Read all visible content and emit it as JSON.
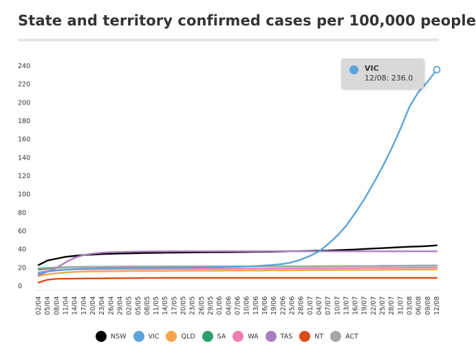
{
  "title": "State and territory confirmed cases per 100,000 people",
  "tooltip": {
    "series": "VIC",
    "text": "12/08: 236.0",
    "color": "#5ba3d9"
  },
  "chart_data": {
    "type": "line",
    "title": "State and territory confirmed cases per 100,000 people",
    "xlabel": "",
    "ylabel": "",
    "ylim": [
      0,
      240
    ],
    "yticks": [
      0,
      20,
      40,
      60,
      80,
      100,
      120,
      140,
      160,
      180,
      200,
      220,
      240
    ],
    "grid": false,
    "legend": "bottom",
    "x": [
      "02/04",
      "05/04",
      "08/04",
      "11/04",
      "14/04",
      "17/04",
      "20/04",
      "23/04",
      "26/04",
      "29/04",
      "02/05",
      "05/05",
      "08/05",
      "11/05",
      "14/05",
      "17/05",
      "20/05",
      "23/05",
      "26/05",
      "29/05",
      "01/06",
      "04/06",
      "07/06",
      "10/06",
      "13/06",
      "16/06",
      "19/06",
      "22/06",
      "25/06",
      "28/06",
      "01/07",
      "04/07",
      "07/07",
      "10/07",
      "13/07",
      "16/07",
      "19/07",
      "22/07",
      "25/07",
      "28/07",
      "31/07",
      "03/08",
      "06/08",
      "09/08",
      "12/08"
    ],
    "series": [
      {
        "name": "NSW",
        "color": "#000000",
        "values": [
          23,
          28,
          30,
          32,
          33,
          34,
          34.5,
          35,
          35.3,
          35.6,
          35.8,
          36,
          36.2,
          36.4,
          36.5,
          36.6,
          36.7,
          36.8,
          36.9,
          37,
          37,
          37.1,
          37.2,
          37.3,
          37.4,
          37.5,
          37.6,
          37.8,
          38,
          38.2,
          38.4,
          38.6,
          38.8,
          39.2,
          39.6,
          40,
          40.5,
          41,
          41.5,
          42,
          42.5,
          43,
          43.3,
          43.7,
          44.5
        ]
      },
      {
        "name": "VIC",
        "color": "#5ba3d9",
        "values": [
          14,
          16,
          17,
          18,
          18.5,
          19,
          19.2,
          19.4,
          19.5,
          19.6,
          19.7,
          19.8,
          19.9,
          20,
          20,
          20.1,
          20.2,
          20.3,
          20.4,
          20.6,
          20.8,
          21,
          21.2,
          21.5,
          22,
          22.5,
          23.2,
          24.2,
          26,
          29,
          33,
          38,
          46,
          55,
          66,
          80,
          95,
          112,
          130,
          150,
          172,
          196,
          212,
          223,
          236
        ]
      },
      {
        "name": "QLD",
        "color": "#f5a54a",
        "values": [
          11,
          13,
          14,
          15,
          15.5,
          15.8,
          16,
          16.1,
          16.2,
          16.3,
          16.4,
          16.5,
          16.5,
          16.6,
          16.6,
          16.7,
          16.7,
          16.8,
          16.8,
          16.9,
          16.9,
          17,
          17,
          17,
          17.1,
          17.1,
          17.2,
          17.2,
          17.3,
          17.3,
          17.4,
          17.4,
          17.5,
          17.5,
          17.6,
          17.6,
          17.7,
          17.7,
          17.8,
          17.8,
          17.9,
          17.9,
          18,
          18,
          18.1
        ]
      },
      {
        "name": "SA",
        "color": "#2c9e6f",
        "values": [
          18,
          19,
          20,
          20.5,
          20.8,
          21,
          21.1,
          21.2,
          21.3,
          21.3,
          21.4,
          21.4,
          21.4,
          21.4,
          21.5,
          21.5,
          21.5,
          21.5,
          21.5,
          21.5,
          21.5,
          21.5,
          21.6,
          21.6,
          21.6,
          21.6,
          21.6,
          21.7,
          21.7,
          21.7,
          21.7,
          21.8,
          21.8,
          21.8,
          21.9,
          21.9,
          22,
          22,
          22.1,
          22.1,
          22.2,
          22.2,
          22.3,
          22.3,
          22.4
        ]
      },
      {
        "name": "WA",
        "color": "#ef7fb1",
        "values": [
          15,
          16.5,
          17.5,
          18,
          18.2,
          18.3,
          18.4,
          18.5,
          18.5,
          18.6,
          18.6,
          18.7,
          18.7,
          18.7,
          18.8,
          18.8,
          18.8,
          18.9,
          18.9,
          19,
          19,
          19,
          19.1,
          19.1,
          19.2,
          19.2,
          19.3,
          19.3,
          19.4,
          19.4,
          19.5,
          19.5,
          19.6,
          19.6,
          19.7,
          19.7,
          19.8,
          19.8,
          19.9,
          19.9,
          20,
          20,
          20.1,
          20.1,
          20.2
        ]
      },
      {
        "name": "TAS",
        "color": "#a97dc2",
        "values": [
          12,
          16,
          20,
          26,
          31,
          34,
          35.5,
          36.5,
          37,
          37.2,
          37.5,
          37.7,
          37.8,
          37.9,
          37.9,
          38,
          38,
          38,
          38,
          38,
          38,
          38,
          38,
          38,
          38,
          38,
          38,
          38,
          38,
          38,
          38,
          38,
          38,
          38,
          38,
          38,
          38,
          38,
          38,
          38,
          38,
          38,
          38,
          38,
          38
        ]
      },
      {
        "name": "NT",
        "color": "#d84d18",
        "values": [
          4,
          7,
          8,
          8.1,
          8.2,
          8.3,
          8.4,
          8.5,
          8.6,
          8.7,
          8.8,
          8.8,
          8.9,
          8.9,
          9,
          9,
          9,
          9,
          9,
          9,
          9,
          9,
          9,
          9,
          9,
          9,
          9,
          9,
          9,
          9,
          9,
          9,
          9,
          9,
          9,
          9,
          9,
          9,
          9,
          9,
          9,
          9,
          9,
          9,
          9
        ]
      },
      {
        "name": "ACT",
        "color": "#a6a6a6",
        "values": [
          19.5,
          20,
          20.5,
          20.8,
          21,
          21.1,
          21.2,
          21.2,
          21.3,
          21.3,
          21.3,
          21.3,
          21.3,
          21.4,
          21.4,
          21.4,
          21.4,
          21.4,
          21.4,
          21.4,
          21.4,
          21.5,
          21.5,
          21.5,
          21.5,
          21.5,
          21.5,
          21.5,
          21.6,
          21.6,
          21.6,
          21.6,
          21.7,
          21.7,
          21.8,
          21.9,
          22,
          22,
          22.1,
          22.2,
          22.3,
          22.4,
          22.5,
          22.6,
          22.7
        ]
      }
    ]
  }
}
